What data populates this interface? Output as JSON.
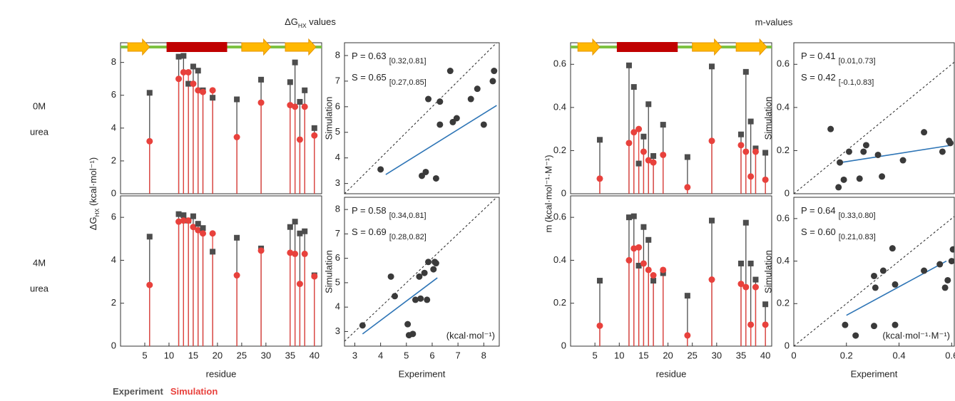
{
  "figure": {
    "title_dg": {
      "main": "ΔG",
      "sub": "HX",
      "rest": " values"
    },
    "title_m": "m-values",
    "ylabel_dg": {
      "main": "ΔG",
      "sub": "HX",
      "rest": " (kcal·mol⁻¹)"
    },
    "ylabel_m": "m (kcal·mol⁻¹·M⁻¹)",
    "rows": [
      [
        "0M",
        "urea"
      ],
      [
        "4M",
        "urea"
      ]
    ],
    "legend": [
      {
        "name": "Experiment",
        "color": "#555555"
      },
      {
        "name": "Simulation",
        "color": "#e8413c"
      }
    ]
  },
  "chart_data": [
    {
      "type": "lollipop",
      "x": [
        6,
        12,
        13,
        14,
        15,
        16,
        17,
        19,
        24,
        29,
        35,
        36,
        37,
        38,
        40
      ],
      "series": [
        {
          "color": "#4d4d4d",
          "values": [
            6.15,
            8.35,
            8.4,
            6.7,
            7.75,
            7.5,
            6.3,
            5.85,
            5.75,
            6.95,
            6.8,
            8.0,
            5.6,
            6.3,
            4.0
          ]
        },
        {
          "color": "#e8413c",
          "values": [
            3.2,
            7.0,
            7.4,
            7.4,
            6.7,
            6.3,
            6.2,
            6.3,
            3.45,
            5.55,
            5.4,
            5.3,
            3.3,
            5.3,
            3.55
          ]
        }
      ],
      "xlim": [
        0,
        41.5
      ],
      "ylim": [
        0,
        9.2
      ],
      "yticks": [
        0,
        2,
        4,
        6,
        8
      ],
      "secondary_structure": [
        {
          "kind": "strand",
          "start": 1.5,
          "end": 6
        },
        {
          "kind": "helix",
          "start": 9.5,
          "end": 22
        },
        {
          "kind": "strand",
          "start": 25,
          "end": 31
        },
        {
          "kind": "strand",
          "start": 34,
          "end": 40.3
        }
      ]
    },
    {
      "type": "lollipop",
      "x": [
        6,
        12,
        13,
        14,
        15,
        16,
        17,
        19,
        24,
        29,
        35,
        36,
        37,
        38,
        40
      ],
      "series": [
        {
          "color": "#4d4d4d",
          "values": [
            5.1,
            6.15,
            6.1,
            5.85,
            6.05,
            5.7,
            5.5,
            4.4,
            5.05,
            4.55,
            5.55,
            5.8,
            5.25,
            5.35,
            3.3
          ]
        },
        {
          "color": "#e8413c",
          "values": [
            2.85,
            5.8,
            5.85,
            5.85,
            5.55,
            5.4,
            5.25,
            5.25,
            3.3,
            4.45,
            4.35,
            4.3,
            2.9,
            4.3,
            3.25
          ]
        }
      ],
      "xlim": [
        0,
        41.5
      ],
      "ylim": [
        0,
        7
      ],
      "yticks": [
        0,
        2,
        4,
        6
      ],
      "xticks": [
        5,
        10,
        15,
        20,
        25,
        30,
        35,
        40
      ],
      "xlabel": "residue"
    },
    {
      "type": "scatter",
      "ylabel": "Simulation",
      "xlim": [
        2.6,
        8.6
      ],
      "ylim": [
        2.6,
        8.5
      ],
      "yticks": [
        3,
        4,
        5,
        6,
        7,
        8
      ],
      "stats": [
        {
          "label": "P = 0.63",
          "ci": "[0.32,0.81]"
        },
        {
          "label": "S = 0.65",
          "ci": "[0.27,0.85]"
        }
      ],
      "fit": {
        "x": [
          4.2,
          8.5
        ],
        "y": [
          3.35,
          6.05
        ]
      },
      "diagonal": true
    },
    {
      "type": "scatter",
      "ylabel": "Simulation",
      "xlabel": "Experiment",
      "xlim": [
        2.6,
        8.6
      ],
      "ylim": [
        2.4,
        8.5
      ],
      "yticks": [
        3,
        4,
        5,
        6,
        7,
        8
      ],
      "xticks": [
        3,
        4,
        5,
        6,
        7,
        8
      ],
      "stats": [
        {
          "label": "P = 0.58",
          "ci": "[0.34,0.81]"
        },
        {
          "label": "S = 0.69",
          "ci": "[0.28,0.82]"
        }
      ],
      "unit": "(kcal·mol⁻¹)",
      "fit": {
        "x": [
          3.3,
          6.2
        ],
        "y": [
          2.9,
          5.2
        ]
      },
      "diagonal": true
    },
    {
      "type": "lollipop",
      "x": [
        6,
        12,
        13,
        14,
        15,
        16,
        17,
        19,
        24,
        29,
        35,
        36,
        37,
        38,
        40
      ],
      "series": [
        {
          "color": "#4d4d4d",
          "values": [
            0.25,
            0.595,
            0.495,
            0.14,
            0.265,
            0.415,
            0.175,
            0.32,
            0.17,
            0.59,
            0.275,
            0.565,
            0.335,
            0.21,
            0.19
          ]
        },
        {
          "color": "#e8413c",
          "values": [
            0.07,
            0.235,
            0.285,
            0.3,
            0.195,
            0.155,
            0.145,
            0.18,
            0.03,
            0.245,
            0.225,
            0.195,
            0.08,
            0.195,
            0.065
          ]
        }
      ],
      "xlim": [
        0,
        41.3
      ],
      "ylim": [
        0,
        0.7
      ],
      "yticks": [
        0,
        0.2,
        0.4,
        0.6
      ],
      "secondary_structure": [
        {
          "kind": "strand",
          "start": 1.5,
          "end": 6
        },
        {
          "kind": "helix",
          "start": 9.5,
          "end": 22
        },
        {
          "kind": "strand",
          "start": 25,
          "end": 31
        },
        {
          "kind": "strand",
          "start": 34,
          "end": 40.3
        }
      ]
    },
    {
      "type": "lollipop",
      "x": [
        6,
        12,
        13,
        14,
        15,
        16,
        17,
        19,
        24,
        29,
        35,
        36,
        37,
        38,
        40
      ],
      "series": [
        {
          "color": "#4d4d4d",
          "values": [
            0.305,
            0.6,
            0.605,
            0.375,
            0.555,
            0.495,
            0.305,
            0.34,
            0.235,
            0.585,
            0.385,
            0.575,
            0.385,
            0.31,
            0.195
          ]
        },
        {
          "color": "#e8413c",
          "values": [
            0.095,
            0.4,
            0.455,
            0.46,
            0.385,
            0.355,
            0.33,
            0.355,
            0.05,
            0.31,
            0.29,
            0.275,
            0.1,
            0.275,
            0.1
          ]
        }
      ],
      "xlim": [
        0,
        41.3
      ],
      "ylim": [
        0,
        0.7
      ],
      "yticks": [
        0,
        0.2,
        0.4,
        0.6
      ],
      "xticks": [
        5,
        10,
        15,
        20,
        25,
        30,
        35,
        40
      ],
      "xlabel": "residue"
    },
    {
      "type": "scatter",
      "ylabel": "Simulation",
      "xlim": [
        0,
        0.61
      ],
      "ylim": [
        0,
        0.7
      ],
      "yticks": [
        0,
        0.2,
        0.4,
        0.6
      ],
      "stats": [
        {
          "label": "P = 0.41",
          "ci": "[0.01,0.73]"
        },
        {
          "label": "S = 0.42",
          "ci": "[-0.1,0.83]"
        }
      ],
      "fit": {
        "x": [
          0.18,
          0.6
        ],
        "y": [
          0.145,
          0.225
        ]
      },
      "diagonal": true
    },
    {
      "type": "scatter",
      "ylabel": "Simulation",
      "xlabel": "Experiment",
      "xlim": [
        0,
        0.61
      ],
      "ylim": [
        0,
        0.7
      ],
      "yticks": [
        0,
        0.2,
        0.4,
        0.6
      ],
      "xticks": [
        0,
        0.2,
        0.4,
        0.6
      ],
      "stats": [
        {
          "label": "P = 0.64",
          "ci": "[0.33,0.80]"
        },
        {
          "label": "S = 0.60",
          "ci": "[0.21,0.83]"
        }
      ],
      "unit": "(kcal·mol⁻¹·M⁻¹)",
      "fit": {
        "x": [
          0.2,
          0.58
        ],
        "y": [
          0.145,
          0.4
        ]
      },
      "diagonal": true
    }
  ]
}
